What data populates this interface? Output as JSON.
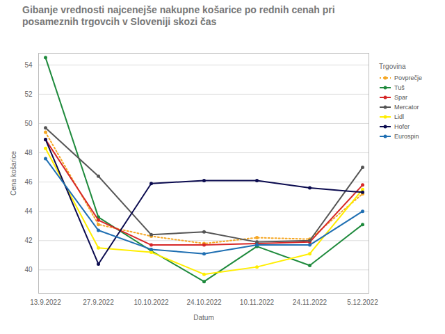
{
  "chart_data": {
    "type": "line",
    "title": "Gibanje vrednosti najcenejše nakupne košarice po rednih cenah pri posameznih trgovcih v Sloveniji skozi čas",
    "x_label": "Datum",
    "y_label": "Cena košarice",
    "legend_title": "Trgovina",
    "legend": "right",
    "grid": true,
    "marker": "circle",
    "categories": [
      "13.9.2022",
      "27.9.2022",
      "10.10.2022",
      "24.10.2022",
      "10.11.2022",
      "24.11.2022",
      "5.12.2022"
    ],
    "ylim": [
      38.4,
      54.8
    ],
    "yticks": [
      40,
      42,
      44,
      46,
      48,
      50,
      52,
      54
    ],
    "series": [
      {
        "name": "Povprečje",
        "color": "#f5a623",
        "line_style": "dotted",
        "values": [
          49.4,
          43.1,
          42.3,
          41.8,
          42.2,
          42.1,
          45.2
        ]
      },
      {
        "name": "Tuš",
        "color": "#1e8a3c",
        "line_style": "solid",
        "values": [
          54.5,
          43.6,
          41.3,
          39.2,
          41.6,
          40.3,
          43.1
        ]
      },
      {
        "name": "Spar",
        "color": "#d62728",
        "line_style": "solid",
        "values": [
          48.9,
          43.4,
          41.7,
          41.7,
          41.8,
          41.9,
          45.8
        ]
      },
      {
        "name": "Mercator",
        "color": "#555555",
        "line_style": "solid",
        "values": [
          49.7,
          46.4,
          42.4,
          42.6,
          41.9,
          42.0,
          47.0
        ]
      },
      {
        "name": "Lidl",
        "color": "#ffee00",
        "line_style": "solid",
        "values": [
          48.3,
          41.5,
          41.2,
          39.7,
          40.2,
          41.1,
          45.5
        ]
      },
      {
        "name": "Hofer",
        "color": "#0b0b4f",
        "line_style": "solid",
        "values": [
          48.9,
          40.4,
          45.9,
          46.1,
          46.1,
          45.6,
          45.3
        ]
      },
      {
        "name": "Eurospin",
        "color": "#1f6fb2",
        "line_style": "solid",
        "values": [
          47.6,
          42.7,
          41.4,
          41.1,
          41.7,
          41.7,
          44.0
        ]
      }
    ]
  }
}
